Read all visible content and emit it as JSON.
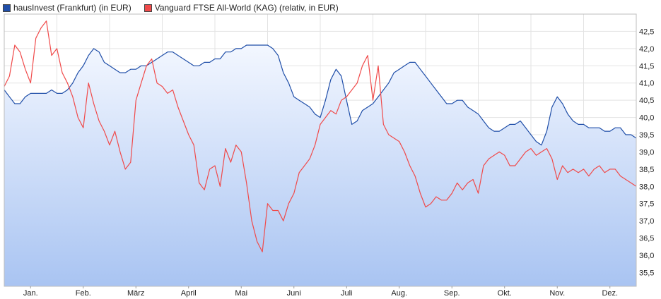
{
  "chart_data": {
    "type": "line",
    "colors": {
      "blue": "#1f4ea8",
      "red": "#f04a4a",
      "area_top": "#f3f7ff",
      "area_bottom": "#a9c4f2"
    },
    "legend": [
      {
        "label": "hausInvest (Frankfurt) (in EUR)",
        "color": "#1f4ea8"
      },
      {
        "label": "Vanguard FTSE All-World (KAG) (relativ, in EUR)",
        "color": "#f04a4a"
      }
    ],
    "legend_position": "top-left",
    "x_tick_labels": [
      "Jan.",
      "Feb.",
      "März",
      "April",
      "Mai",
      "Juni",
      "Juli",
      "Aug.",
      "Sep.",
      "Okt.",
      "Nov.",
      "Dez."
    ],
    "x_tick_positions": [
      0.5,
      1.5,
      2.5,
      3.5,
      4.5,
      5.5,
      6.5,
      7.5,
      8.5,
      9.5,
      10.5,
      11.5
    ],
    "xlim": [
      0,
      12
    ],
    "y_ticks": [
      35.5,
      36.0,
      36.5,
      37.0,
      37.5,
      38.0,
      38.5,
      39.0,
      39.5,
      40.0,
      40.5,
      41.0,
      41.5,
      42.0,
      42.5
    ],
    "y_tick_labels": [
      "35,5",
      "36,0",
      "36,5",
      "37,0",
      "37,5",
      "38,0",
      "38,5",
      "39,0",
      "39,5",
      "40,0",
      "40,5",
      "41,0",
      "41,5",
      "42,0",
      "42,5"
    ],
    "ylim": [
      35.1,
      43.0
    ],
    "grid": true,
    "series": [
      {
        "name": "hausInvest (Frankfurt) (in EUR)",
        "color": "#1f4ea8",
        "area": true,
        "x": [
          0.0,
          0.1,
          0.2,
          0.3,
          0.4,
          0.5,
          0.6,
          0.7,
          0.8,
          0.9,
          1.0,
          1.1,
          1.2,
          1.3,
          1.4,
          1.5,
          1.6,
          1.7,
          1.8,
          1.9,
          2.0,
          2.1,
          2.2,
          2.3,
          2.4,
          2.5,
          2.6,
          2.7,
          2.8,
          2.9,
          3.0,
          3.1,
          3.2,
          3.3,
          3.4,
          3.5,
          3.6,
          3.7,
          3.8,
          3.9,
          4.0,
          4.1,
          4.2,
          4.3,
          4.4,
          4.5,
          4.6,
          4.7,
          4.8,
          4.9,
          5.0,
          5.1,
          5.2,
          5.3,
          5.4,
          5.5,
          5.6,
          5.7,
          5.8,
          5.9,
          6.0,
          6.1,
          6.2,
          6.3,
          6.4,
          6.5,
          6.6,
          6.7,
          6.8,
          6.9,
          7.0,
          7.1,
          7.2,
          7.3,
          7.4,
          7.5,
          7.6,
          7.7,
          7.8,
          7.9,
          8.0,
          8.1,
          8.2,
          8.3,
          8.4,
          8.5,
          8.6,
          8.7,
          8.8,
          8.9,
          9.0,
          9.1,
          9.2,
          9.3,
          9.4,
          9.5,
          9.6,
          9.7,
          9.8,
          9.9,
          10.0,
          10.1,
          10.2,
          10.3,
          10.4,
          10.5,
          10.6,
          10.7,
          10.8,
          10.9,
          11.0,
          11.1,
          11.2,
          11.3,
          11.4,
          11.5,
          11.6,
          11.7,
          11.8,
          11.9,
          12.0
        ],
        "values": [
          40.8,
          40.6,
          40.4,
          40.4,
          40.6,
          40.7,
          40.7,
          40.7,
          40.7,
          40.8,
          40.7,
          40.7,
          40.8,
          41.0,
          41.3,
          41.5,
          41.8,
          42.0,
          41.9,
          41.6,
          41.5,
          41.4,
          41.3,
          41.3,
          41.4,
          41.4,
          41.5,
          41.5,
          41.6,
          41.7,
          41.8,
          41.9,
          41.9,
          41.8,
          41.7,
          41.6,
          41.5,
          41.5,
          41.6,
          41.6,
          41.7,
          41.7,
          41.9,
          41.9,
          42.0,
          42.0,
          42.1,
          42.1,
          42.1,
          42.1,
          42.1,
          42.0,
          41.8,
          41.3,
          41.0,
          40.6,
          40.5,
          40.4,
          40.3,
          40.1,
          40.0,
          40.5,
          41.1,
          41.4,
          41.2,
          40.5,
          39.8,
          39.9,
          40.2,
          40.3,
          40.4,
          40.6,
          40.8,
          41.0,
          41.3,
          41.4,
          41.5,
          41.6,
          41.6,
          41.4,
          41.2,
          41.0,
          40.8,
          40.6,
          40.4,
          40.4,
          40.5,
          40.5,
          40.3,
          40.2,
          40.1,
          39.9,
          39.7,
          39.6,
          39.6,
          39.7,
          39.8,
          39.8,
          39.9,
          39.7,
          39.5,
          39.3,
          39.2,
          39.6,
          40.3,
          40.6,
          40.4,
          40.1,
          39.9,
          39.8,
          39.8,
          39.7,
          39.7,
          39.7,
          39.6,
          39.6,
          39.7,
          39.7,
          39.5,
          39.5,
          39.4
        ]
      },
      {
        "name": "Vanguard FTSE All-World (KAG) (relativ, in EUR)",
        "color": "#f04a4a",
        "area": false,
        "x": [
          0.0,
          0.1,
          0.2,
          0.3,
          0.4,
          0.5,
          0.6,
          0.7,
          0.8,
          0.9,
          1.0,
          1.1,
          1.2,
          1.3,
          1.4,
          1.5,
          1.6,
          1.7,
          1.8,
          1.9,
          2.0,
          2.1,
          2.2,
          2.3,
          2.4,
          2.5,
          2.6,
          2.7,
          2.8,
          2.9,
          3.0,
          3.1,
          3.2,
          3.3,
          3.4,
          3.5,
          3.6,
          3.7,
          3.8,
          3.9,
          4.0,
          4.1,
          4.2,
          4.3,
          4.4,
          4.5,
          4.6,
          4.7,
          4.8,
          4.9,
          5.0,
          5.1,
          5.2,
          5.3,
          5.4,
          5.5,
          5.6,
          5.7,
          5.8,
          5.9,
          6.0,
          6.1,
          6.2,
          6.3,
          6.4,
          6.5,
          6.6,
          6.7,
          6.8,
          6.9,
          7.0,
          7.1,
          7.2,
          7.3,
          7.4,
          7.5,
          7.6,
          7.7,
          7.8,
          7.9,
          8.0,
          8.1,
          8.2,
          8.3,
          8.4,
          8.5,
          8.6,
          8.7,
          8.8,
          8.9,
          9.0,
          9.1,
          9.2,
          9.3,
          9.4,
          9.5,
          9.6,
          9.7,
          9.8,
          9.9,
          10.0,
          10.1,
          10.2,
          10.3,
          10.4,
          10.5,
          10.6,
          10.7,
          10.8,
          10.9,
          11.0,
          11.1,
          11.2,
          11.3,
          11.4,
          11.5,
          11.6,
          11.7,
          11.8,
          11.9,
          12.0
        ],
        "values": [
          40.9,
          41.2,
          42.1,
          41.9,
          41.4,
          41.0,
          42.3,
          42.6,
          42.8,
          41.8,
          42.0,
          41.3,
          41.0,
          40.6,
          40.0,
          39.7,
          41.0,
          40.4,
          39.9,
          39.6,
          39.2,
          39.6,
          39.0,
          38.5,
          38.7,
          40.5,
          41.0,
          41.5,
          41.7,
          41.0,
          40.9,
          40.7,
          40.8,
          40.3,
          39.9,
          39.5,
          39.2,
          38.1,
          37.9,
          38.5,
          38.6,
          38.0,
          39.1,
          38.7,
          39.2,
          39.0,
          38.1,
          37.0,
          36.4,
          36.1,
          37.5,
          37.3,
          37.3,
          37.0,
          37.5,
          37.8,
          38.4,
          38.6,
          38.8,
          39.2,
          39.8,
          40.0,
          40.2,
          40.1,
          40.5,
          40.6,
          40.8,
          41.0,
          41.5,
          41.8,
          40.5,
          41.5,
          39.8,
          39.5,
          39.4,
          39.3,
          39.0,
          38.6,
          38.3,
          37.8,
          37.4,
          37.5,
          37.7,
          37.6,
          37.6,
          37.8,
          38.1,
          37.9,
          38.1,
          38.2,
          37.8,
          38.6,
          38.8,
          38.9,
          39.0,
          38.9,
          38.6,
          38.6,
          38.8,
          39.0,
          39.1,
          38.9,
          39.0,
          39.1,
          38.8,
          38.2,
          38.6,
          38.4,
          38.5,
          38.4,
          38.5,
          38.3,
          38.5,
          38.6,
          38.4,
          38.5,
          38.5,
          38.3,
          38.2,
          38.1,
          38.0
        ]
      }
    ]
  }
}
